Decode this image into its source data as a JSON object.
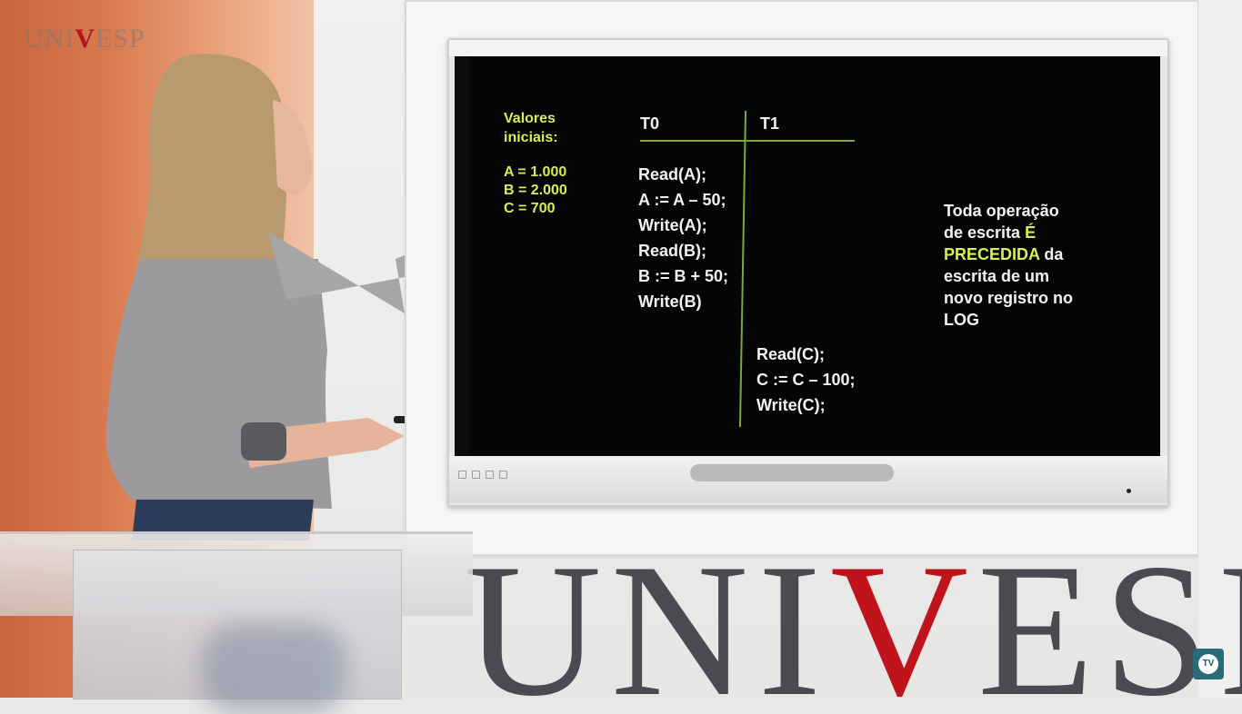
{
  "brand": {
    "corner_logo_left": "UNI",
    "corner_logo_v": "V",
    "corner_logo_right": "ESP",
    "wall_logo_left": "UNI",
    "wall_logo_v": "V",
    "wall_logo_right": "ESP",
    "tv_badge": "TV"
  },
  "slide": {
    "initial_values": {
      "heading_line1": "Valores",
      "heading_line2": "iniciais:",
      "a": "A = 1.000",
      "b": "B = 2.000",
      "c": "C = 700"
    },
    "t0": {
      "header": "T0",
      "ops": [
        "Read(A);",
        "A := A – 50;",
        "Write(A);",
        "Read(B);",
        "B := B + 50;",
        "Write(B)"
      ]
    },
    "t1": {
      "header": "T1",
      "ops": [
        "Read(C);",
        "C := C – 100;",
        "Write(C);"
      ]
    },
    "note": {
      "line1": "Toda operação",
      "line2_pre": "de escrita ",
      "line2_hl": "É",
      "line3_hl": "PRECEDIDA",
      "line3_post": " da",
      "line4": "escrita de um",
      "line5": "novo registro no",
      "line6": "LOG"
    }
  },
  "colors": {
    "highlight": "#d4f056",
    "line": "#7aa83c",
    "logo_red": "#b4141c"
  }
}
